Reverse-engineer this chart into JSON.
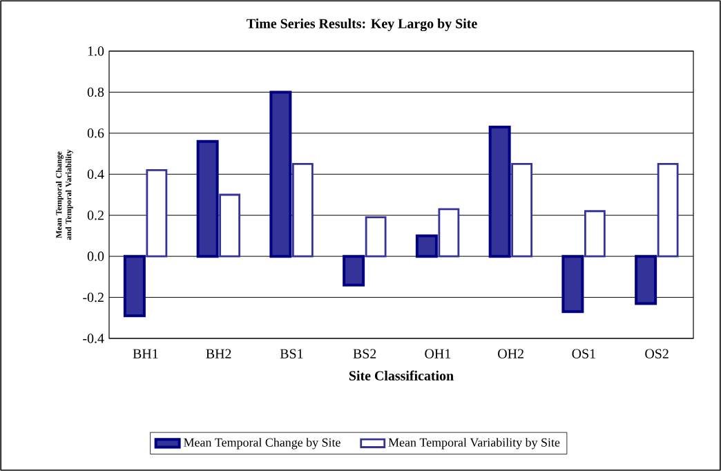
{
  "chart_data": {
    "type": "bar",
    "title": "Time Series Results:  Key Largo by Site",
    "xlabel": "Site Classification",
    "ylabel": "Mean Temporal Change and Temporal Variability",
    "categories": [
      "BH1",
      "BH2",
      "BS1",
      "BS2",
      "OH1",
      "OH2",
      "OS1",
      "OS2"
    ],
    "series": [
      {
        "name": "Mean Temporal Change by Site",
        "color": "#333399",
        "values": [
          -0.29,
          0.56,
          0.8,
          -0.14,
          0.1,
          0.63,
          -0.27,
          -0.23
        ]
      },
      {
        "name": "Mean Temporal Variability by Site",
        "color": "#ffffff",
        "values": [
          0.42,
          0.3,
          0.45,
          0.19,
          0.23,
          0.45,
          0.22,
          0.45
        ]
      }
    ],
    "ylim": [
      -0.4,
      1.0
    ],
    "yticks": [
      {
        "value": -0.4,
        "label": "-0.4"
      },
      {
        "value": -0.2,
        "label": "-0.2"
      },
      {
        "value": 0.0,
        "label": "0.0"
      },
      {
        "value": 0.2,
        "label": "0.2"
      },
      {
        "value": 0.4,
        "label": "0.4"
      },
      {
        "value": 0.6,
        "label": "0.6"
      },
      {
        "value": 0.8,
        "label": "0.8"
      },
      {
        "value": 1.0,
        "label": "1.0"
      }
    ],
    "grid": "y",
    "legend": "bottom"
  }
}
